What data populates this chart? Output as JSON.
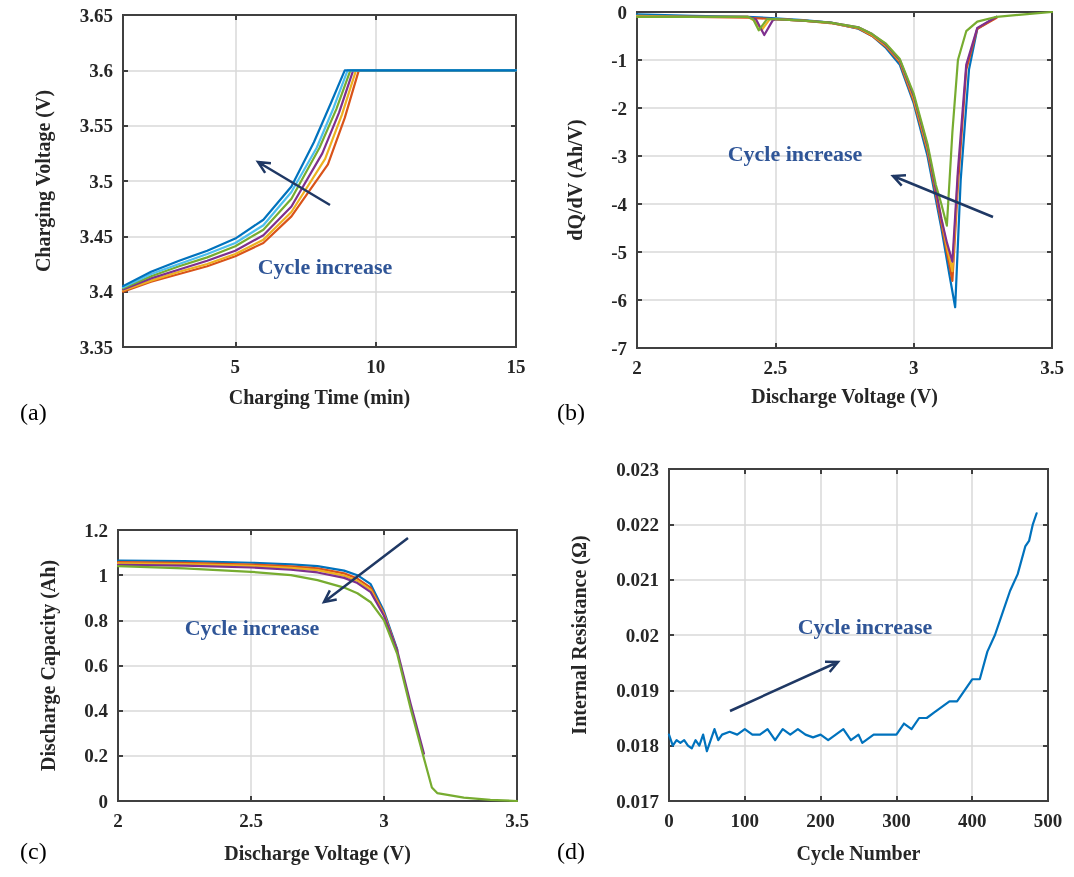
{
  "chart_data": [
    {
      "type": "line",
      "xlabel": "Charging Time (min)",
      "ylabel": "Charging Voltage (V)",
      "annotations": [
        "(a)",
        "Cycle increase"
      ],
      "xlim": [
        1,
        15
      ],
      "xticks": [
        5,
        10,
        15
      ],
      "ylim": [
        3.35,
        3.65
      ],
      "yticks": [
        3.35,
        3.4,
        3.45,
        3.5,
        3.55,
        3.6,
        3.65
      ],
      "grid": true,
      "series": [
        {
          "color": "#d95319",
          "x": [
            1,
            2,
            3,
            4,
            5,
            6,
            7,
            8.3,
            8.9,
            9.4,
            15
          ],
          "values": [
            3.4,
            3.409,
            3.416,
            3.423,
            3.432,
            3.444,
            3.468,
            3.515,
            3.557,
            3.6,
            3.6
          ]
        },
        {
          "color": "#edb120",
          "x": [
            1,
            2,
            3,
            4,
            5,
            6,
            7,
            8.2,
            8.8,
            9.3,
            15
          ],
          "values": [
            3.401,
            3.41,
            3.418,
            3.425,
            3.434,
            3.447,
            3.472,
            3.52,
            3.56,
            3.6,
            3.6
          ]
        },
        {
          "color": "#7e2f8e",
          "x": [
            1,
            2,
            3,
            4,
            5,
            6,
            7,
            8.1,
            8.7,
            9.2,
            15
          ],
          "values": [
            3.402,
            3.412,
            3.42,
            3.428,
            3.437,
            3.451,
            3.477,
            3.525,
            3.562,
            3.6,
            3.6
          ]
        },
        {
          "color": "#77ac30",
          "x": [
            1,
            2,
            3,
            4,
            5,
            6,
            7,
            8,
            8.6,
            9.1,
            15
          ],
          "values": [
            3.403,
            3.414,
            3.423,
            3.431,
            3.441,
            3.456,
            3.484,
            3.53,
            3.565,
            3.6,
            3.6
          ]
        },
        {
          "color": "#4dbeee",
          "x": [
            1,
            2,
            3,
            4,
            5,
            6,
            7,
            7.9,
            8.5,
            9,
            15
          ],
          "values": [
            3.404,
            3.416,
            3.425,
            3.434,
            3.444,
            3.46,
            3.49,
            3.53,
            3.566,
            3.6,
            3.6
          ]
        },
        {
          "color": "#0072bd",
          "x": [
            1,
            2,
            3,
            4,
            5,
            6,
            7,
            7.8,
            8.4,
            8.9,
            15
          ],
          "values": [
            3.405,
            3.418,
            3.428,
            3.437,
            3.448,
            3.465,
            3.495,
            3.535,
            3.57,
            3.6,
            3.6
          ]
        }
      ]
    },
    {
      "type": "line",
      "xlabel": "Discharge Voltage (V)",
      "ylabel": "dQ/dV (Ah/V)",
      "annotations": [
        "(b)",
        "Cycle increase"
      ],
      "xlim": [
        2,
        3.5
      ],
      "xticks": [
        2,
        2.5,
        3,
        3.5
      ],
      "ylim": [
        -7,
        0
      ],
      "yticks": [
        -7,
        -6,
        -5,
        -4,
        -3,
        -2,
        -1,
        0
      ],
      "grid": true,
      "series": [
        {
          "color": "#0072bd",
          "x": [
            2,
            2.2,
            2.4,
            2.5,
            2.6,
            2.7,
            2.8,
            2.85,
            2.9,
            2.95,
            3,
            3.05,
            3.08,
            3.1,
            3.13,
            3.15,
            3.17,
            3.2,
            3.23,
            3.3
          ],
          "values": [
            -0.05,
            -0.08,
            -0.1,
            -0.13,
            -0.17,
            -0.22,
            -0.35,
            -0.5,
            -0.75,
            -1.1,
            -1.9,
            -3,
            -3.9,
            -4.5,
            -5.5,
            -6.15,
            -3.5,
            -1.2,
            -0.35,
            -0.1
          ]
        },
        {
          "color": "#d95319",
          "x": [
            2,
            2.2,
            2.4,
            2.5,
            2.6,
            2.7,
            2.8,
            2.85,
            2.9,
            2.95,
            3,
            3.05,
            3.08,
            3.1,
            3.12,
            3.14,
            3.16,
            3.19,
            3.23,
            3.3
          ],
          "values": [
            -0.1,
            -0.1,
            -0.12,
            -0.15,
            -0.18,
            -0.23,
            -0.34,
            -0.5,
            -0.72,
            -1.05,
            -1.85,
            -2.9,
            -3.8,
            -4.4,
            -5,
            -5.6,
            -3.6,
            -1.2,
            -0.35,
            -0.12
          ]
        },
        {
          "color": "#edb120",
          "x": [
            2,
            2.2,
            2.4,
            2.43,
            2.45,
            2.48,
            2.5,
            2.6,
            2.7,
            2.8,
            2.85,
            2.9,
            2.95,
            3,
            3.05,
            3.08,
            3.1,
            3.12,
            3.14,
            3.16
          ],
          "values": [
            -0.08,
            -0.1,
            -0.1,
            -0.2,
            -0.38,
            -0.15,
            -0.15,
            -0.18,
            -0.23,
            -0.33,
            -0.48,
            -0.7,
            -1.02,
            -1.8,
            -2.85,
            -3.7,
            -4.3,
            -4.9,
            -5.4,
            -3.4
          ]
        },
        {
          "color": "#7e2f8e",
          "x": [
            2,
            2.2,
            2.4,
            2.43,
            2.46,
            2.49,
            2.5,
            2.6,
            2.7,
            2.8,
            2.85,
            2.9,
            2.95,
            3,
            3.05,
            3.08,
            3.1,
            3.12,
            3.14,
            3.16,
            3.19,
            3.23,
            3.3
          ],
          "values": [
            -0.1,
            -0.1,
            -0.1,
            -0.15,
            -0.48,
            -0.18,
            -0.15,
            -0.18,
            -0.22,
            -0.32,
            -0.46,
            -0.68,
            -1,
            -1.75,
            -2.8,
            -3.7,
            -4.3,
            -4.8,
            -5.2,
            -3.3,
            -1.1,
            -0.33,
            -0.1
          ]
        },
        {
          "color": "#77ac30",
          "x": [
            2,
            2.2,
            2.4,
            2.42,
            2.44,
            2.47,
            2.5,
            2.6,
            2.7,
            2.8,
            2.85,
            2.9,
            2.95,
            3,
            3.05,
            3.08,
            3.1,
            3.12,
            3.14,
            3.16,
            3.19,
            3.23,
            3.3,
            3.4,
            3.5
          ],
          "values": [
            -0.1,
            -0.1,
            -0.1,
            -0.15,
            -0.38,
            -0.15,
            -0.15,
            -0.18,
            -0.22,
            -0.32,
            -0.46,
            -0.66,
            -0.98,
            -1.7,
            -2.75,
            -3.6,
            -4,
            -4.45,
            -2.5,
            -1,
            -0.4,
            -0.2,
            -0.1,
            -0.05,
            0
          ]
        }
      ]
    },
    {
      "type": "line",
      "xlabel": "Discharge Voltage (V)",
      "ylabel": "Discharge Capacity (Ah)",
      "annotations": [
        "(c)",
        "Cycle increase"
      ],
      "xlim": [
        2,
        3.5
      ],
      "xticks": [
        2,
        2.5,
        3,
        3.5
      ],
      "ylim": [
        0,
        1.2
      ],
      "yticks": [
        0,
        0.2,
        0.4,
        0.6,
        0.8,
        1,
        1.2
      ],
      "grid": true,
      "series": [
        {
          "color": "#0072bd",
          "x": [
            2,
            2.25,
            2.5,
            2.65,
            2.75,
            2.85,
            2.9,
            2.95,
            3,
            3.05
          ],
          "values": [
            1.065,
            1.062,
            1.055,
            1.048,
            1.04,
            1.02,
            1,
            0.96,
            0.84,
            0.67
          ]
        },
        {
          "color": "#d95319",
          "x": [
            2,
            2.25,
            2.5,
            2.65,
            2.75,
            2.85,
            2.9,
            2.95,
            3,
            3.05
          ],
          "values": [
            1.058,
            1.055,
            1.047,
            1.039,
            1.03,
            1.008,
            0.985,
            0.945,
            0.83,
            0.665
          ]
        },
        {
          "color": "#edb120",
          "x": [
            2,
            2.25,
            2.5,
            2.65,
            2.75,
            2.85,
            2.9,
            2.95,
            3,
            3.05
          ],
          "values": [
            1.052,
            1.049,
            1.041,
            1.032,
            1.022,
            0.998,
            0.975,
            0.935,
            0.825,
            0.66
          ]
        },
        {
          "color": "#7e2f8e",
          "x": [
            2,
            2.25,
            2.5,
            2.65,
            2.75,
            2.85,
            2.9,
            2.95,
            3,
            3.05,
            3.1,
            3.15
          ],
          "values": [
            1.046,
            1.042,
            1.034,
            1.024,
            1.012,
            0.988,
            0.965,
            0.925,
            0.82,
            0.665,
            0.43,
            0.21
          ]
        },
        {
          "color": "#77ac30",
          "x": [
            2,
            2.25,
            2.5,
            2.65,
            2.75,
            2.85,
            2.9,
            2.95,
            3,
            3.05,
            3.1,
            3.15,
            3.18,
            3.2,
            3.3,
            3.4,
            3.5
          ],
          "values": [
            1.04,
            1.03,
            1.015,
            1,
            0.978,
            0.945,
            0.92,
            0.88,
            0.8,
            0.65,
            0.41,
            0.19,
            0.06,
            0.035,
            0.015,
            0.005,
            0
          ]
        }
      ]
    },
    {
      "type": "line",
      "xlabel": "Cycle Number",
      "ylabel": "Internal Resistance (Ω)",
      "annotations": [
        "(d)",
        "Cycle increase"
      ],
      "xlim": [
        0,
        500
      ],
      "xticks": [
        0,
        100,
        200,
        300,
        400,
        500
      ],
      "ylim": [
        0.017,
        0.023
      ],
      "yticks": [
        0.017,
        0.018,
        0.019,
        0.02,
        0.021,
        0.022,
        0.023
      ],
      "grid": true,
      "series": [
        {
          "color": "#0072bd",
          "x": [
            0,
            5,
            10,
            15,
            20,
            25,
            30,
            35,
            40,
            45,
            50,
            55,
            60,
            65,
            70,
            80,
            90,
            100,
            110,
            120,
            130,
            140,
            150,
            160,
            170,
            180,
            190,
            200,
            210,
            220,
            230,
            240,
            250,
            255,
            260,
            270,
            280,
            290,
            300,
            310,
            320,
            330,
            340,
            350,
            360,
            370,
            380,
            390,
            400,
            410,
            420,
            430,
            440,
            450,
            460,
            470,
            475,
            480,
            485
          ],
          "values": [
            0.0182,
            0.018,
            0.0181,
            0.01805,
            0.0181,
            0.018,
            0.01795,
            0.0181,
            0.018,
            0.0182,
            0.0179,
            0.0181,
            0.0183,
            0.0181,
            0.0182,
            0.01825,
            0.0182,
            0.0183,
            0.0182,
            0.0182,
            0.0183,
            0.0181,
            0.0183,
            0.0182,
            0.0183,
            0.0182,
            0.01815,
            0.0182,
            0.0181,
            0.0182,
            0.0183,
            0.0181,
            0.0182,
            0.01805,
            0.0181,
            0.0182,
            0.0182,
            0.0182,
            0.0182,
            0.0184,
            0.0183,
            0.0185,
            0.0185,
            0.0186,
            0.0187,
            0.0188,
            0.0188,
            0.019,
            0.0192,
            0.0192,
            0.0197,
            0.02,
            0.0204,
            0.0208,
            0.0211,
            0.0216,
            0.0217,
            0.022,
            0.0222
          ]
        }
      ]
    }
  ]
}
